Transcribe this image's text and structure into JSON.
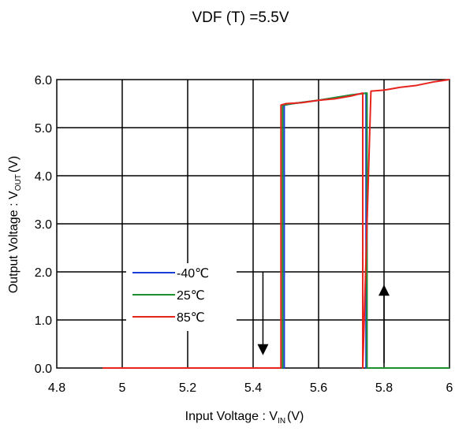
{
  "chart_data": {
    "type": "line",
    "title": "VDF (T) =5.5V",
    "xlabel": {
      "main": "Input Voltage : V",
      "sub": "IN",
      "suffix": "(V)"
    },
    "ylabel": {
      "main": "Output Voltage : V",
      "sub": "OUT",
      "suffix": "(V)"
    },
    "xlim": [
      4.8,
      6.0
    ],
    "ylim": [
      0.0,
      6.0
    ],
    "x_ticks": [
      {
        "value": 4.8,
        "label": "4.8"
      },
      {
        "value": 5.0,
        "label": "5"
      },
      {
        "value": 5.2,
        "label": "5.2"
      },
      {
        "value": 5.4,
        "label": "5.4"
      },
      {
        "value": 5.6,
        "label": "5.6"
      },
      {
        "value": 5.8,
        "label": "5.8"
      },
      {
        "value": 6.0,
        "label": "6"
      }
    ],
    "y_ticks": [
      {
        "value": 0.0,
        "label": "0.0"
      },
      {
        "value": 1.0,
        "label": "1.0"
      },
      {
        "value": 2.0,
        "label": "2.0"
      },
      {
        "value": 3.0,
        "label": "3.0"
      },
      {
        "value": 4.0,
        "label": "4.0"
      },
      {
        "value": 5.0,
        "label": "5.0"
      },
      {
        "value": 6.0,
        "label": "6.0"
      }
    ],
    "grid": true,
    "legend_position": "left-middle",
    "series": [
      {
        "name": "-40℃",
        "color": "#1a3fd6",
        "x": [
          4.94,
          5.495,
          5.495,
          5.52,
          5.6,
          5.7,
          5.745,
          5.745,
          5.8,
          5.9,
          6.0
        ],
        "y": [
          0.0,
          0.0,
          5.47,
          5.5,
          5.57,
          5.68,
          5.72,
          0.0,
          0.0,
          0.0,
          0.0
        ]
      },
      {
        "name": "25℃",
        "color": "#1f8f2e",
        "x": [
          4.94,
          5.49,
          5.49,
          5.52,
          5.6,
          5.7,
          5.748,
          5.748,
          5.8,
          5.9,
          6.0
        ],
        "y": [
          0.0,
          0.0,
          5.47,
          5.5,
          5.57,
          5.68,
          5.72,
          0.0,
          0.0,
          0.0,
          0.0
        ]
      },
      {
        "name": "85℃",
        "color": "#e8231e",
        "x": [
          4.94,
          5.485,
          5.485,
          5.5,
          5.55,
          5.6,
          5.65,
          5.7,
          5.735,
          5.735,
          5.76,
          5.8,
          5.85,
          5.9,
          5.95,
          6.0
        ],
        "y": [
          0.0,
          0.0,
          5.47,
          5.5,
          5.52,
          5.57,
          5.6,
          5.66,
          5.72,
          0.0,
          5.76,
          5.78,
          5.84,
          5.88,
          5.95,
          6.0
        ]
      }
    ],
    "arrows": [
      {
        "x": 5.43,
        "y_from": 2.0,
        "y_to": 0.3,
        "direction": "down"
      },
      {
        "x": 5.8,
        "y_from": 0.1,
        "y_to": 1.7,
        "direction": "up"
      }
    ]
  }
}
